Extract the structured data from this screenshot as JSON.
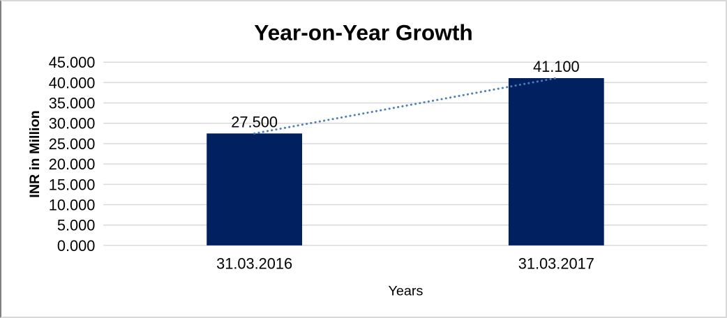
{
  "window": {
    "background": "#ffffff",
    "frame_border_color": "#d9d9d9",
    "frame_left_edge_color": "#7f7f7f"
  },
  "chart_data": {
    "type": "bar",
    "title": "Year-on-Year Growth",
    "categories": [
      "31.03.2016",
      "31.03.2017"
    ],
    "values": [
      27.5,
      41.1
    ],
    "data_labels": [
      "27.500",
      "41.100"
    ],
    "xlabel": "Years",
    "ylabel": "INR in Million",
    "ylim": [
      0,
      45
    ],
    "ytick_step": 5,
    "ytick_labels": [
      "0.000",
      "5.000",
      "10.000",
      "15.000",
      "20.000",
      "25.000",
      "30.000",
      "35.000",
      "40.000",
      "45.000"
    ],
    "grid": true,
    "legend_position": "none",
    "bar_color": "#002060",
    "gridline_color": "#d9d9d9",
    "text_color": "#000000",
    "trendline": {
      "type": "linear",
      "style": "dotted",
      "color": "#4a7ebb",
      "from_value": 27.5,
      "to_value": 41.1
    }
  }
}
